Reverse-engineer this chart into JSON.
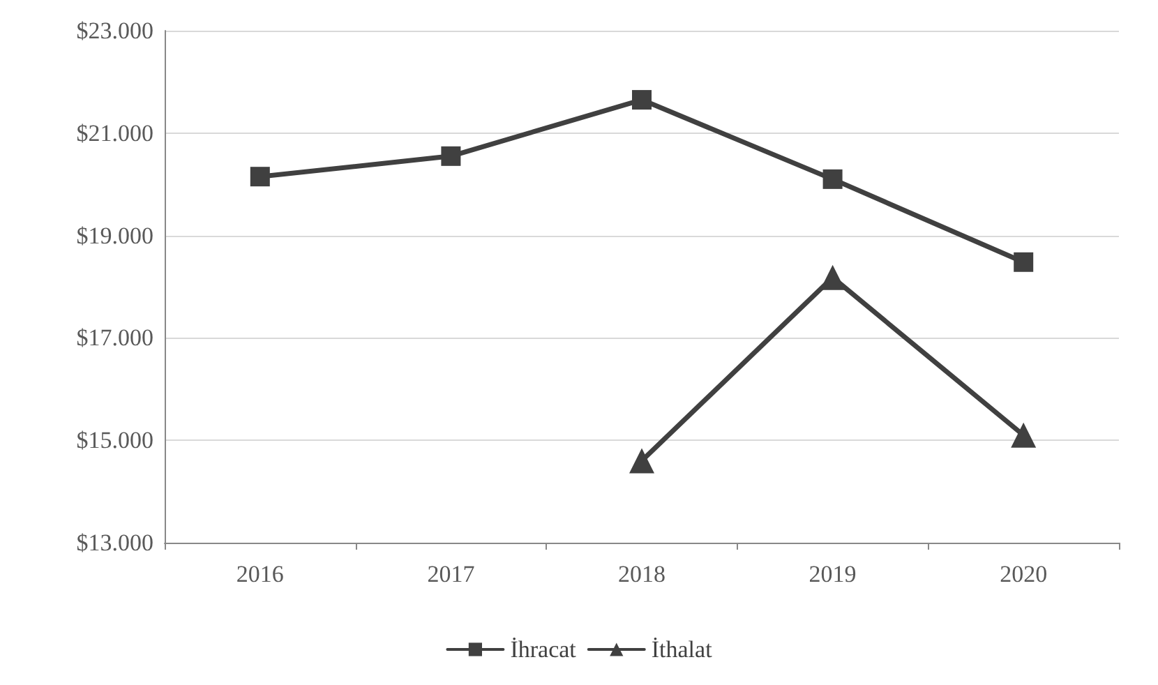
{
  "chart_data": {
    "type": "line",
    "categories": [
      "2016",
      "2017",
      "2018",
      "2019",
      "2020"
    ],
    "series": [
      {
        "name": "İhracat",
        "color": "#404040",
        "marker": "square",
        "values": [
          20150,
          20550,
          21650,
          20100,
          18480
        ]
      },
      {
        "name": "İthalat",
        "color": "#404040",
        "marker": "triangle",
        "values": [
          null,
          null,
          14600,
          18180,
          15100
        ]
      }
    ],
    "ylim": [
      13000,
      23000
    ],
    "yticks": [
      {
        "value": 13000,
        "label": "$13.000"
      },
      {
        "value": 15000,
        "label": "$15.000"
      },
      {
        "value": 17000,
        "label": "$17.000"
      },
      {
        "value": 19000,
        "label": "$19.000"
      },
      {
        "value": 21000,
        "label": "$21.000"
      },
      {
        "value": 23000,
        "label": "$23.000"
      }
    ],
    "grid": "y",
    "legend": "bottom",
    "line_style": "solid"
  }
}
